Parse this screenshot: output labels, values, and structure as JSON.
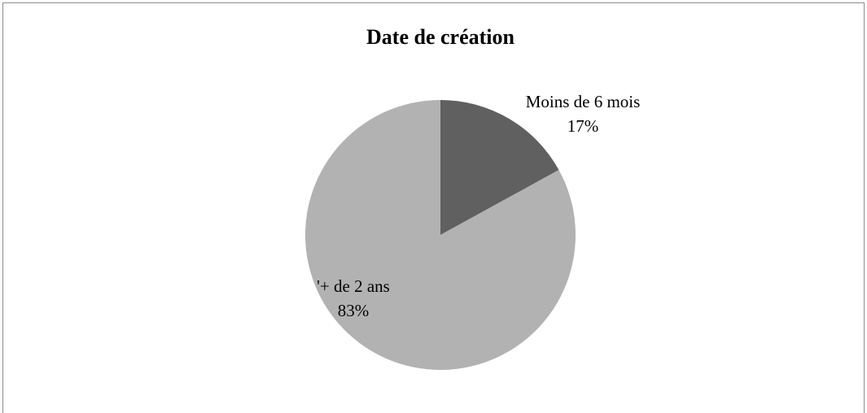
{
  "chart_data": {
    "type": "pie",
    "title": "Date de création",
    "categories": [
      "Moins de 6 mois",
      "'+ de 2 ans"
    ],
    "values": [
      17,
      83
    ],
    "value_labels": [
      "17%",
      "83%"
    ],
    "colors": [
      "#606060",
      "#b2b2b2"
    ]
  }
}
